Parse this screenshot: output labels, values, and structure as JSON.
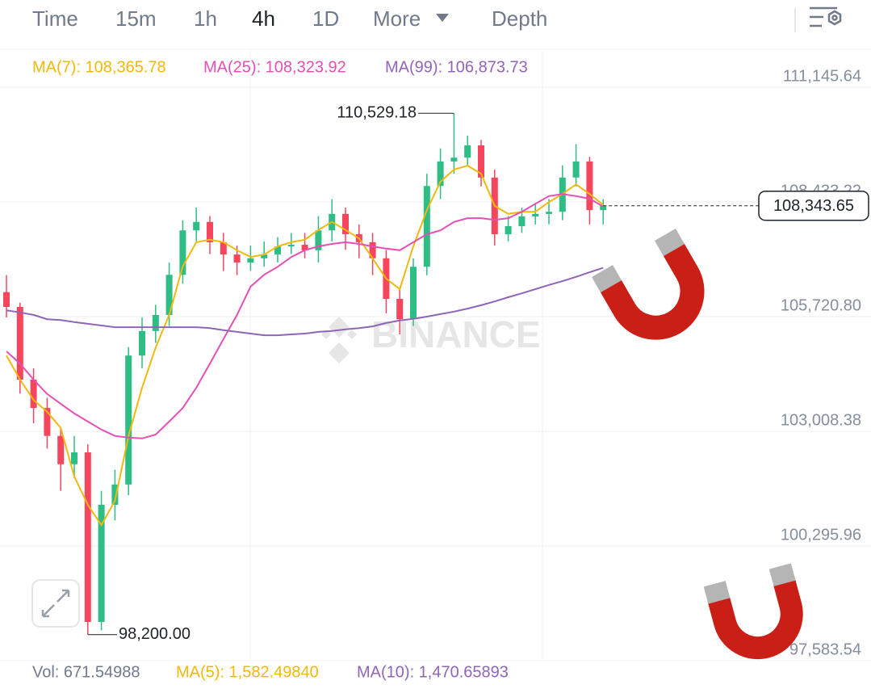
{
  "tabs": [
    "Time",
    "15m",
    "1h",
    "4h",
    "1D",
    "More",
    "Depth"
  ],
  "active_tab": 3,
  "chart_data": {
    "type": "candlestick",
    "up_color": "#2ebd85",
    "down_color": "#f6465d",
    "ylim": [
      97583.54,
      112024.3
    ],
    "yticks": [
      {
        "value": 111145.64,
        "label": "111,145.64"
      },
      {
        "value": 108433.22,
        "label": "108,433.22"
      },
      {
        "value": 105720.8,
        "label": "105,720.80"
      },
      {
        "value": 103008.38,
        "label": "103,008.38"
      },
      {
        "value": 100295.96,
        "label": "100,295.96"
      },
      {
        "value": 97583.54,
        "label": "97,583.54"
      }
    ],
    "grid": true,
    "open": [
      106300,
      105950,
      104230,
      103560,
      102900,
      102230,
      102510,
      98500,
      101270,
      101750,
      104800,
      105380,
      105760,
      106710,
      107760,
      107960,
      107480,
      107190,
      107000,
      107100,
      107190,
      107380,
      107420,
      107290,
      107760,
      108150,
      107670,
      107480,
      107100,
      106140,
      105660,
      106900,
      108810,
      109390,
      109480,
      109770,
      109010,
      107670,
      107860,
      108090,
      108150,
      108200,
      109010,
      109390,
      108240
    ],
    "high": [
      106700,
      106050,
      104500,
      103800,
      103100,
      102900,
      102700,
      101600,
      102100,
      105000,
      105700,
      106000,
      107000,
      108000,
      108300,
      108100,
      107700,
      107400,
      107400,
      107500,
      107600,
      107700,
      107700,
      108100,
      108500,
      108300,
      107900,
      107700,
      107300,
      106400,
      107100,
      109100,
      109700,
      110529.18,
      110000,
      109900,
      109200,
      108100,
      108300,
      108400,
      108500,
      109300,
      109800,
      109500,
      108500
    ],
    "low": [
      105700,
      103900,
      103200,
      102600,
      101600,
      101900,
      98200,
      98300,
      100900,
      101500,
      104500,
      105100,
      105500,
      106500,
      107500,
      107200,
      106800,
      106700,
      106800,
      106900,
      107000,
      107200,
      107100,
      107000,
      107500,
      107300,
      107100,
      106700,
      105800,
      105300,
      105500,
      106700,
      108500,
      109100,
      109300,
      108800,
      107400,
      107500,
      107700,
      107900,
      107900,
      108000,
      108800,
      107900,
      107900
    ],
    "close": [
      105950,
      104230,
      103560,
      102900,
      102230,
      102510,
      98500,
      101270,
      101750,
      104800,
      105380,
      105760,
      106710,
      107760,
      107960,
      107480,
      107190,
      107000,
      107100,
      107190,
      107380,
      107420,
      107290,
      107760,
      108150,
      107670,
      107480,
      107100,
      106140,
      105660,
      106900,
      108810,
      109390,
      109480,
      109770,
      109010,
      107670,
      107860,
      108090,
      108150,
      108200,
      109010,
      109390,
      108240,
      108343.65
    ],
    "series": [
      {
        "legend": "MA(7): 108,365.78",
        "color": "#f0b90b",
        "values": [
          104800,
          104230,
          103750,
          103470,
          103090,
          101940,
          101270,
          100790,
          101370,
          102900,
          104040,
          104990,
          105760,
          106910,
          107480,
          107540,
          107480,
          107290,
          107130,
          107190,
          107380,
          107480,
          107540,
          107770,
          107960,
          107770,
          107570,
          107100,
          106620,
          106370,
          107380,
          108240,
          108910,
          109200,
          109290,
          109100,
          108340,
          108150,
          108200,
          108200,
          108430,
          108620,
          108850,
          108620,
          108365.78
        ]
      },
      {
        "legend": "MA(25): 108,323.92",
        "color": "#e64fb4",
        "values": [
          104900,
          104610,
          104230,
          103890,
          103660,
          103430,
          103240,
          103050,
          102900,
          102860,
          102840,
          102930,
          103240,
          103560,
          104040,
          104610,
          105190,
          105760,
          106430,
          106710,
          106900,
          107130,
          107290,
          107380,
          107440,
          107480,
          107440,
          107380,
          107330,
          107290,
          107480,
          107670,
          107760,
          107960,
          108050,
          108050,
          108010,
          108050,
          108200,
          108390,
          108570,
          108620,
          108570,
          108510,
          108323.92
        ]
      },
      {
        "legend": "MA(99): 106,873.73",
        "color": "#9065b8",
        "values": [
          105870,
          105820,
          105760,
          105660,
          105640,
          105590,
          105550,
          105510,
          105470,
          105470,
          105470,
          105470,
          105470,
          105470,
          105470,
          105450,
          105400,
          105360,
          105320,
          105280,
          105280,
          105300,
          105320,
          105360,
          105380,
          105420,
          105450,
          105490,
          105570,
          105630,
          105670,
          105720,
          105780,
          105840,
          105910,
          105990,
          106080,
          106180,
          106270,
          106370,
          106470,
          106560,
          106660,
          106770,
          106873.73
        ]
      }
    ],
    "max_label": {
      "value": 110529.18,
      "label": "110,529.18"
    },
    "min_label": {
      "value": 98200.0,
      "label": "98,200.00"
    },
    "last_price": {
      "value": 108343.65,
      "label": "108,343.65"
    },
    "watermark": "BINANCE"
  },
  "volume_legend": [
    {
      "text": "Vol: 671.54988",
      "color": "#707a8a"
    },
    {
      "text": "MA(5): 1,582.49840",
      "color": "#f0b90b"
    },
    {
      "text": "MA(10): 1,470.65893",
      "color": "#9065b8"
    }
  ]
}
